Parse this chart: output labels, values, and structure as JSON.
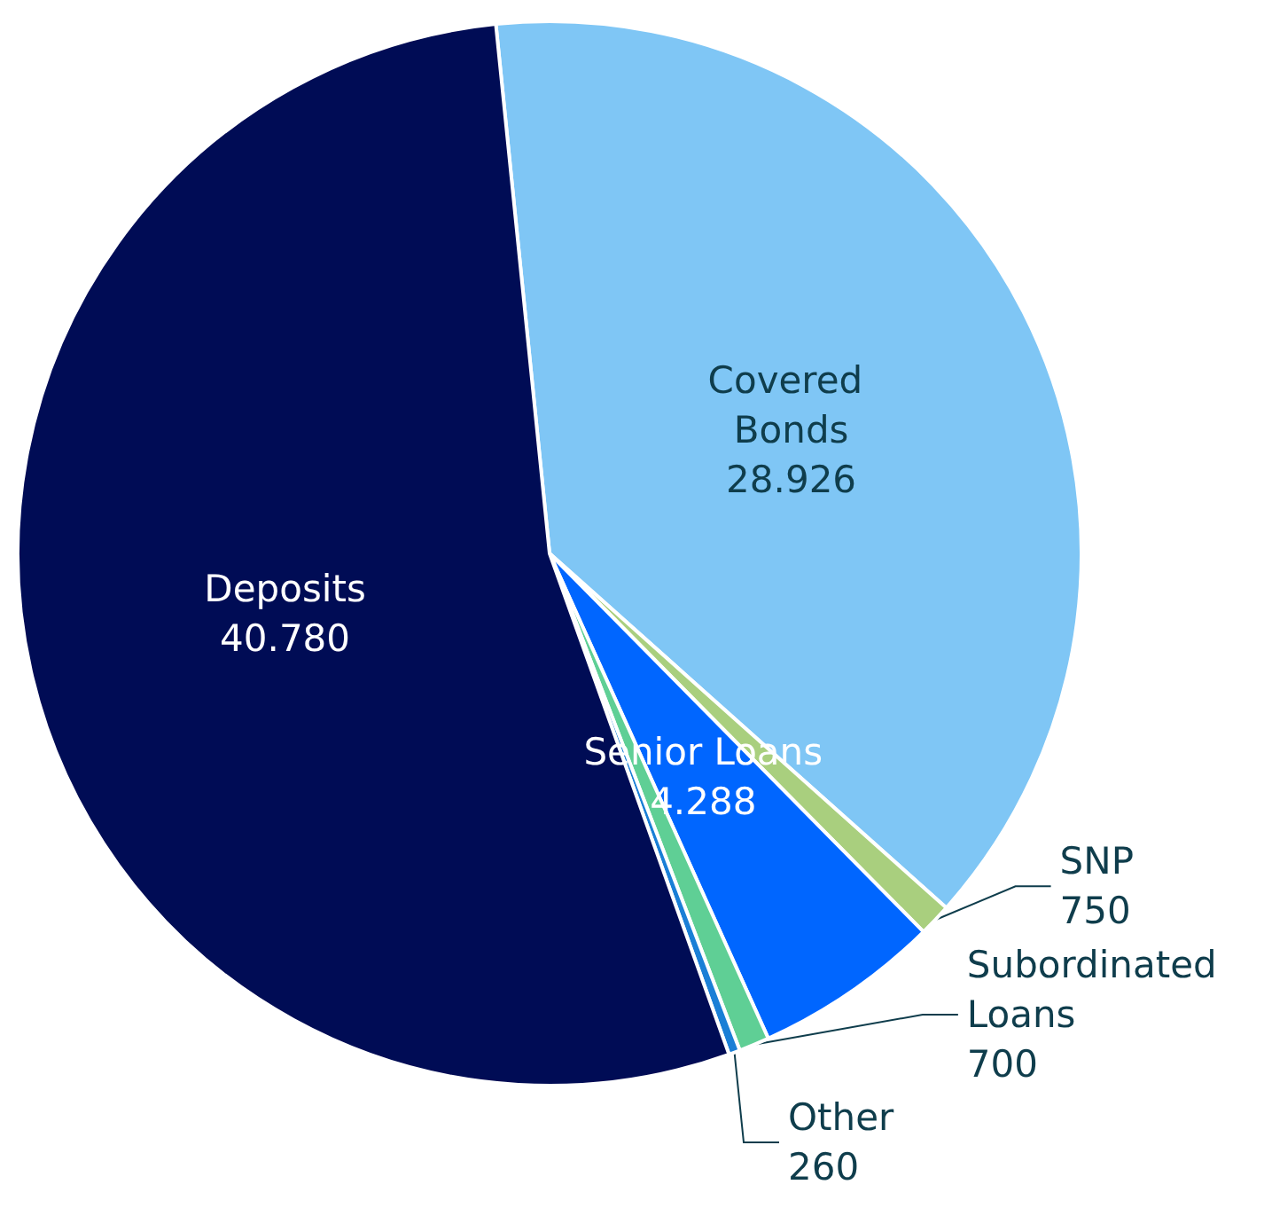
{
  "chart_data": {
    "type": "pie",
    "categories": [
      "Covered Bonds",
      "SNP",
      "Senior Loans",
      "Subordinated Loans",
      "Other",
      "Deposits"
    ],
    "values": [
      28926,
      750,
      4288,
      700,
      260,
      40780
    ],
    "value_labels": [
      "28.926",
      "750",
      "4.288",
      "700",
      "260",
      "40.780"
    ],
    "colors": [
      "#7fc6f5",
      "#a9cf7e",
      "#0066ff",
      "#5fcf95",
      "#1a7fd6",
      "#000c55"
    ],
    "legend": false
  }
}
